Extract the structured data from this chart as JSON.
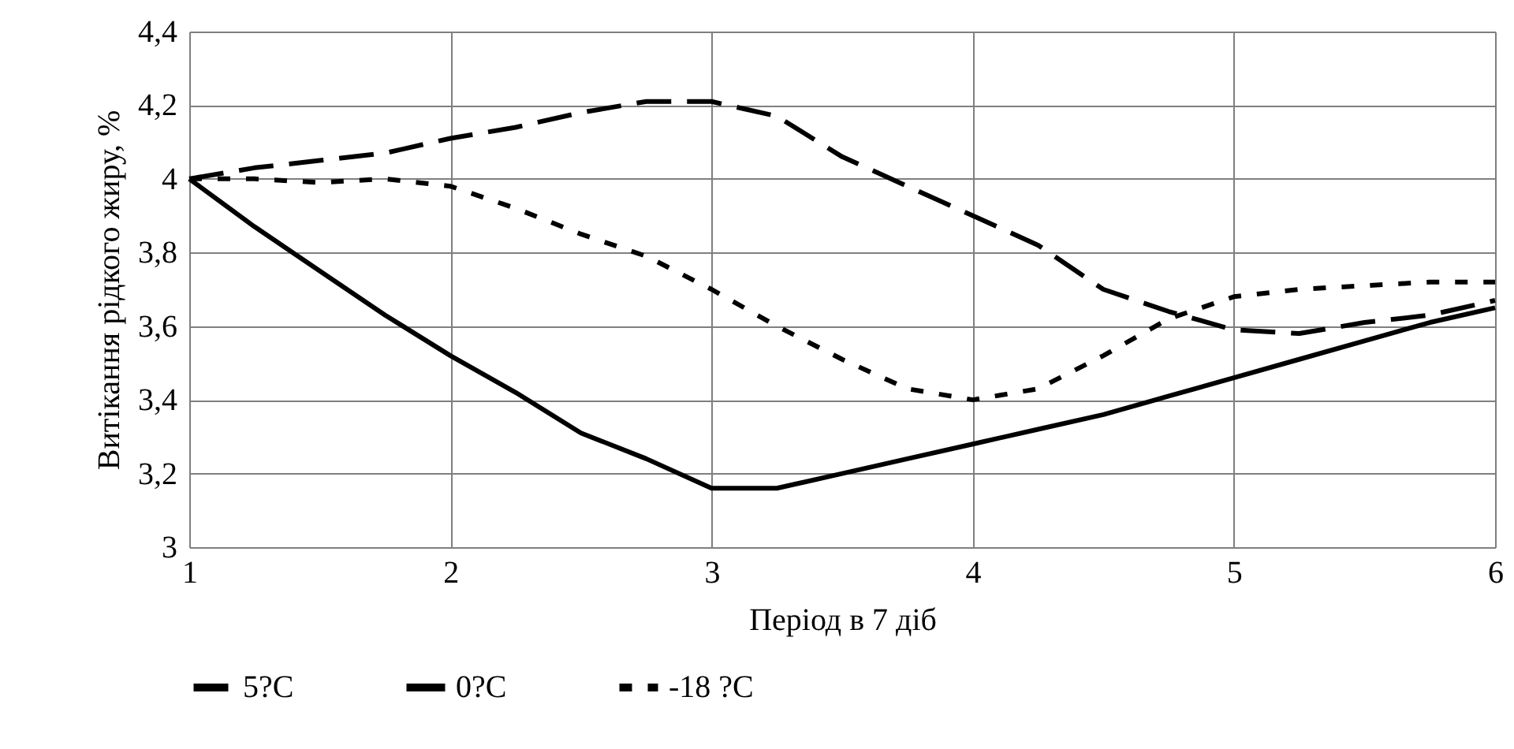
{
  "chart_data": {
    "type": "line",
    "xlabel": "Період в 7 діб",
    "ylabel": "Витікання рідкого жиру, %",
    "xlim": [
      1,
      6
    ],
    "xticks": [
      1,
      2,
      3,
      4,
      5,
      6
    ],
    "ylim": [
      3,
      4.4
    ],
    "yticks": [
      3,
      {
        "value": 3.2,
        "label": "3,2"
      },
      {
        "value": 3.4,
        "label": "3,4"
      },
      {
        "value": 3.6,
        "label": "3,6"
      },
      {
        "value": 3.8,
        "label": "3,8"
      },
      4,
      {
        "value": 4.2,
        "label": "4,2"
      },
      {
        "value": 4.4,
        "label": "4,4"
      }
    ],
    "grid": true,
    "legend": "bottom",
    "x": [
      1,
      1.25,
      1.5,
      1.75,
      2,
      2.25,
      2.5,
      2.75,
      3,
      3.25,
      3.5,
      3.75,
      4,
      4.25,
      4.5,
      4.75,
      5,
      5.25,
      5.5,
      5.75,
      6
    ],
    "series": [
      {
        "name": "5?C",
        "color": "#000000",
        "line_style": "dashed",
        "values": [
          4.0,
          4.03,
          4.05,
          4.07,
          4.11,
          4.14,
          4.18,
          4.21,
          4.21,
          4.17,
          4.06,
          3.98,
          3.9,
          3.82,
          3.7,
          3.64,
          3.59,
          3.58,
          3.61,
          3.63,
          3.67
        ]
      },
      {
        "name": "0?C",
        "color": "#000000",
        "line_style": "solid",
        "values": [
          4.0,
          3.87,
          3.75,
          3.63,
          3.52,
          3.42,
          3.31,
          3.24,
          3.16,
          3.16,
          3.2,
          3.24,
          3.28,
          3.32,
          3.36,
          3.41,
          3.46,
          3.51,
          3.56,
          3.61,
          3.65
        ]
      },
      {
        "name": "-18 ?C",
        "color": "#000000",
        "line_style": "dotted",
        "values": [
          4.0,
          4.0,
          3.99,
          4.0,
          3.98,
          3.92,
          3.85,
          3.79,
          3.7,
          3.6,
          3.51,
          3.43,
          3.4,
          3.43,
          3.52,
          3.62,
          3.68,
          3.7,
          3.71,
          3.72,
          3.72
        ]
      }
    ]
  }
}
